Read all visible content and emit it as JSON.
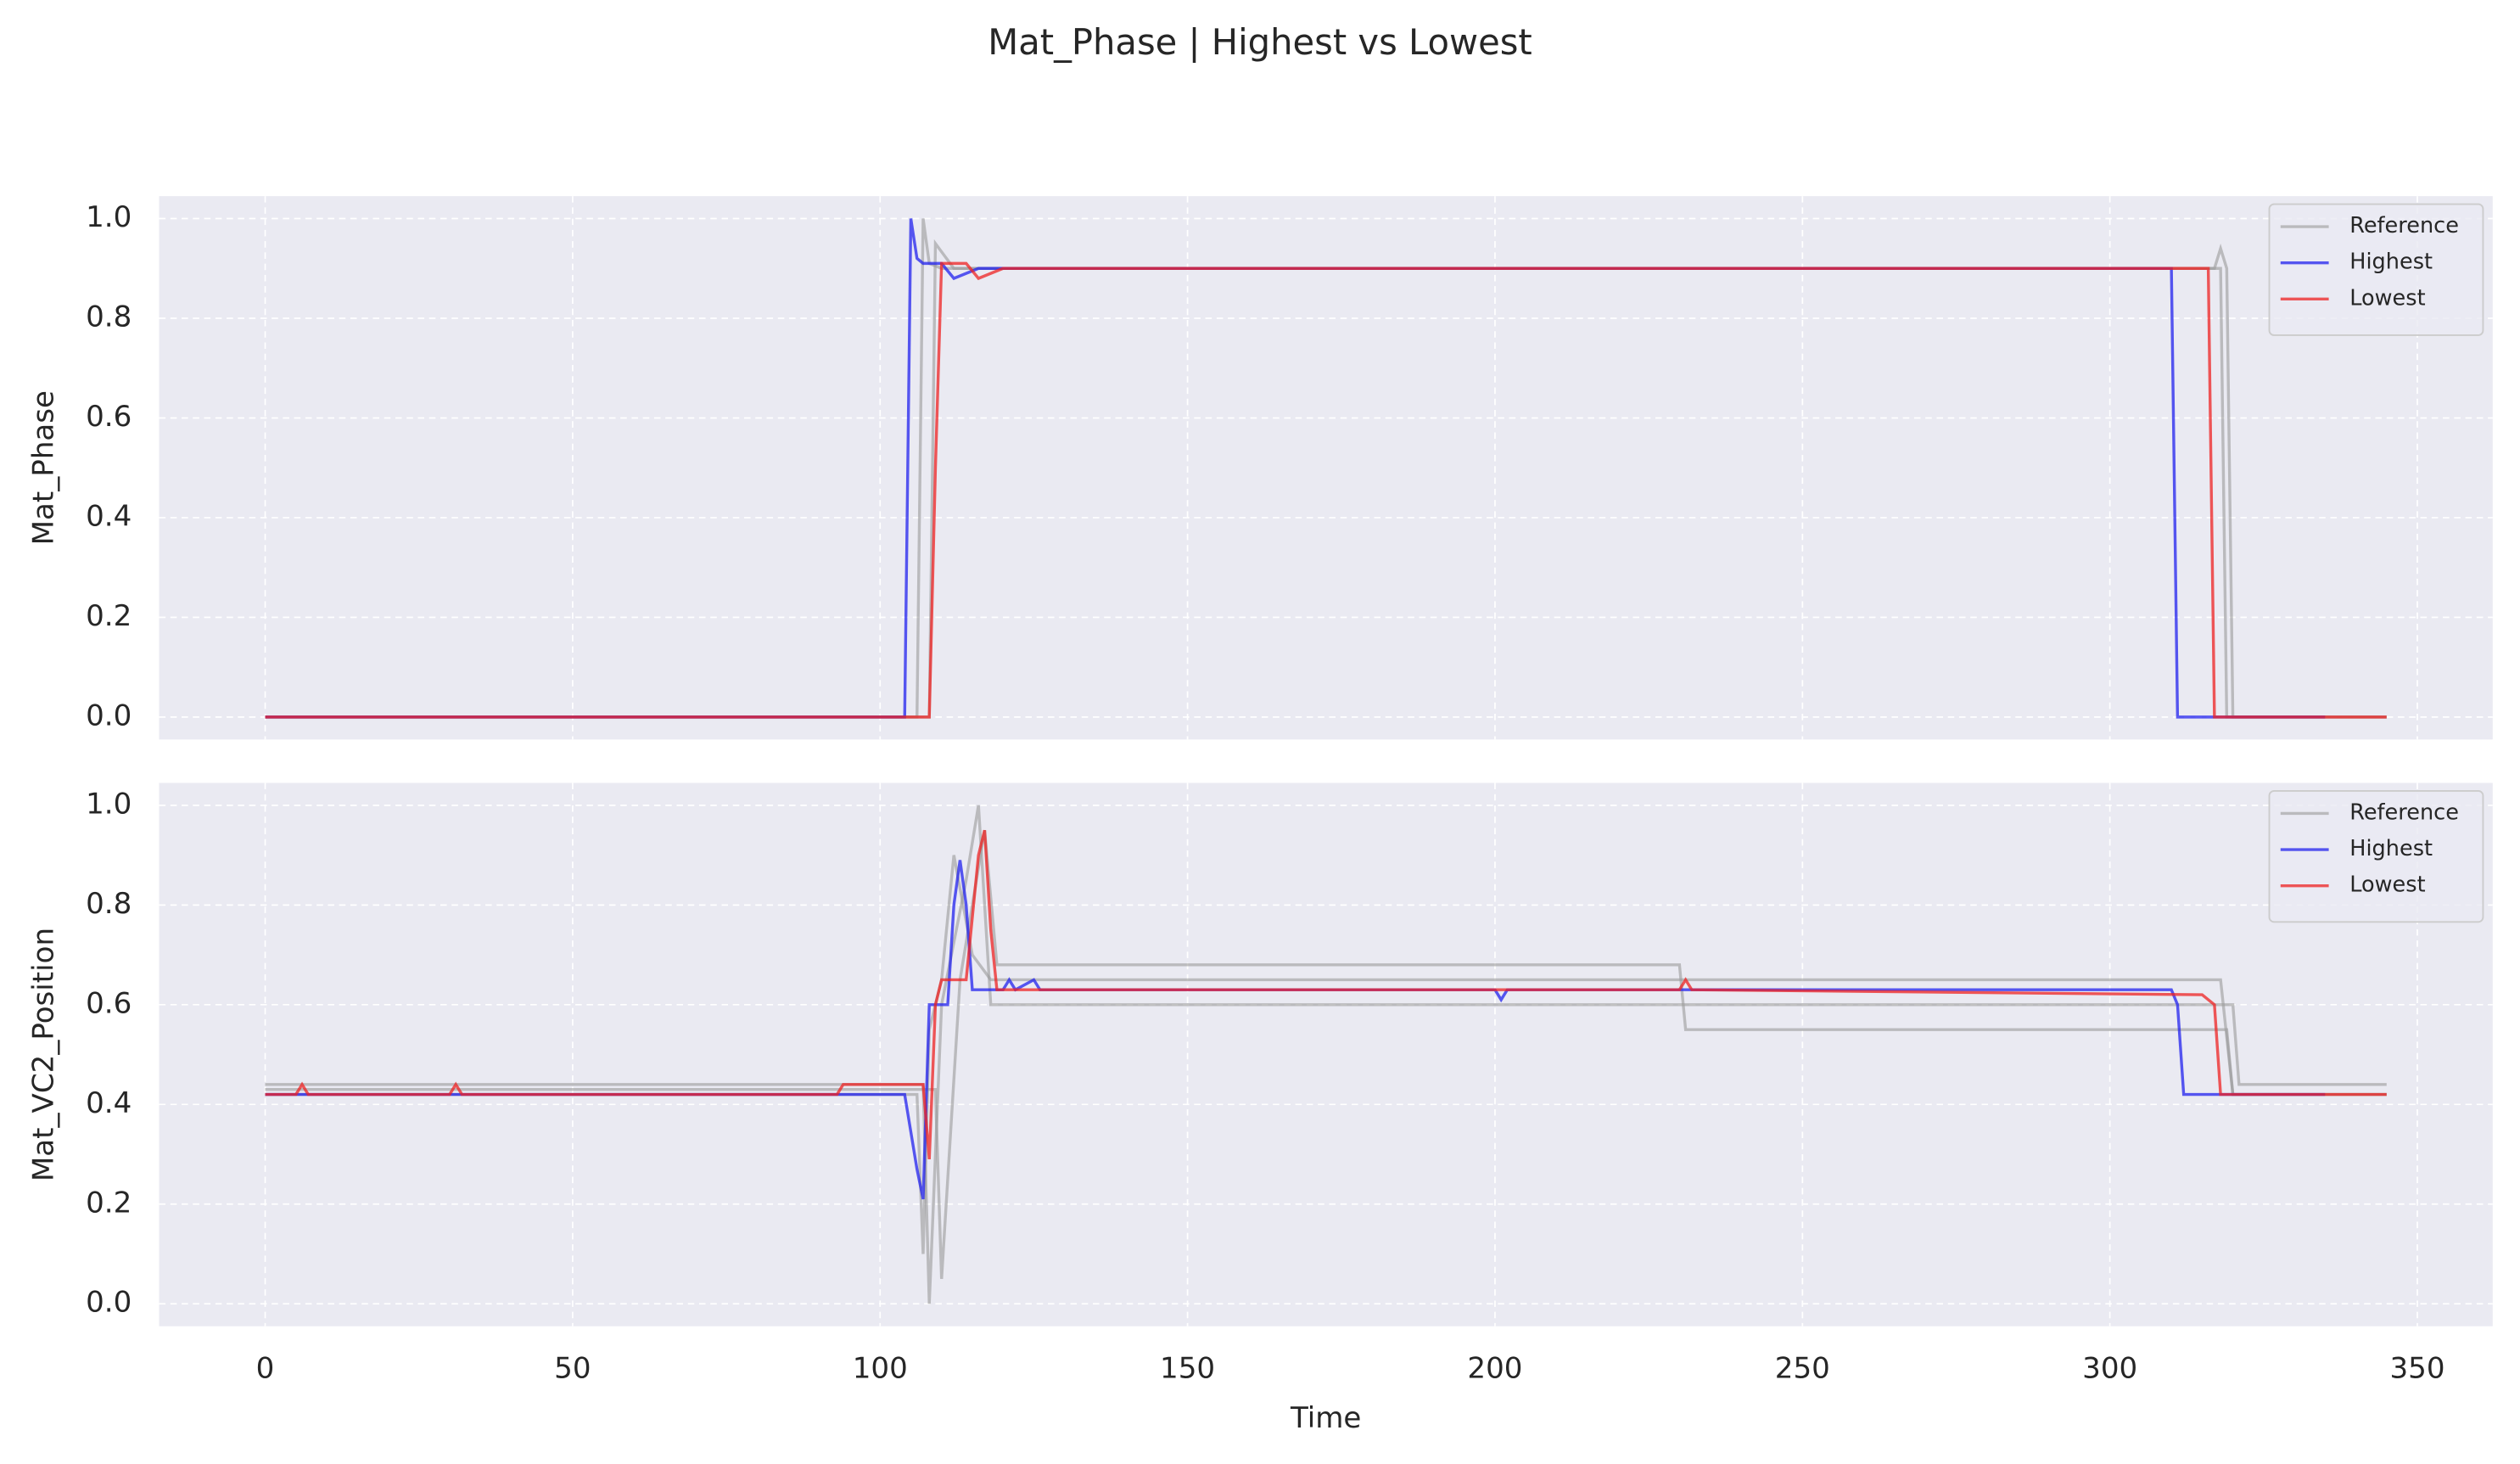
{
  "title": "Mat_Phase | Highest vs Lowest",
  "chart_data": [
    {
      "type": "line",
      "ylabel": "Mat_Phase",
      "legend": "upper right",
      "grid": true,
      "background": "#eaeaf2",
      "xlim": [
        -17.25,
        362.25
      ],
      "ylim": [
        -0.045,
        1.045
      ],
      "yticks": [
        {
          "value": 0,
          "label": "0.0"
        },
        0.2,
        0.4,
        0.6,
        0.8,
        {
          "value": 1,
          "label": "1.0"
        }
      ],
      "series": [
        {
          "name": "Reference",
          "color": "#999999",
          "x": [
            0,
            106,
            107,
            108,
            110,
            318,
            319,
            345
          ],
          "values": [
            0,
            0,
            1.0,
            0.91,
            0.9,
            0.9,
            0,
            0
          ]
        },
        {
          "name": "Reference",
          "color": "#999999",
          "x": [
            0,
            108,
            109,
            112,
            317,
            318,
            319,
            320,
            345
          ],
          "values": [
            0,
            0,
            0.95,
            0.9,
            0.9,
            0.94,
            0.9,
            0,
            0
          ]
        },
        {
          "name": "Highest",
          "color": "#2222ee",
          "x": [
            0,
            104,
            105,
            106,
            107,
            110,
            112,
            114,
            116,
            310,
            311,
            335
          ],
          "values": [
            0,
            0,
            1.0,
            0.92,
            0.91,
            0.91,
            0.88,
            0.89,
            0.9,
            0.9,
            0,
            0
          ]
        },
        {
          "name": "Lowest",
          "color": "#ee2222",
          "x": [
            0,
            108,
            109,
            110,
            114,
            116,
            118,
            120,
            316,
            317,
            345
          ],
          "values": [
            0,
            0,
            0.5,
            0.91,
            0.91,
            0.88,
            0.89,
            0.9,
            0.9,
            0,
            0
          ]
        }
      ]
    },
    {
      "type": "line",
      "ylabel": "Mat_VC2_Position",
      "xlabel": "Time",
      "legend": "upper right",
      "grid": true,
      "background": "#eaeaf2",
      "xlim": [
        -17.25,
        362.25
      ],
      "ylim": [
        -0.045,
        1.045
      ],
      "xticks": [
        0,
        50,
        100,
        150,
        200,
        250,
        300,
        350
      ],
      "yticks": [
        {
          "value": 0,
          "label": "0.0"
        },
        0.2,
        0.4,
        0.6,
        0.8,
        {
          "value": 1,
          "label": "1.0"
        }
      ],
      "series": [
        {
          "name": "Reference",
          "color": "#999999",
          "x": [
            0,
            106,
            107,
            108,
            110,
            112,
            115,
            118,
            318,
            320,
            345
          ],
          "values": [
            0.42,
            0.42,
            0.1,
            0.55,
            0.65,
            0.9,
            0.7,
            0.65,
            0.65,
            0.42,
            0.42
          ]
        },
        {
          "name": "Reference",
          "color": "#999999",
          "x": [
            0,
            107,
            108,
            110,
            114,
            116,
            118,
            320,
            321,
            345
          ],
          "values": [
            0.44,
            0.44,
            0.0,
            0.6,
            0.85,
            1.0,
            0.6,
            0.6,
            0.44,
            0.44
          ]
        },
        {
          "name": "Reference",
          "color": "#999999",
          "x": [
            0,
            109,
            110,
            113,
            117,
            119,
            230,
            231,
            300,
            319,
            320,
            345
          ],
          "values": [
            0.43,
            0.43,
            0.05,
            0.65,
            0.95,
            0.68,
            0.68,
            0.55,
            0.55,
            0.55,
            0.42,
            0.42
          ]
        },
        {
          "name": "Highest",
          "color": "#2222ee",
          "x": [
            0,
            104,
            106,
            107,
            108,
            111,
            112,
            113,
            114,
            115,
            120,
            121,
            122,
            125,
            126,
            200,
            201,
            202,
            310,
            311,
            312,
            335
          ],
          "values": [
            0.42,
            0.42,
            0.27,
            0.21,
            0.6,
            0.6,
            0.8,
            0.89,
            0.8,
            0.63,
            0.63,
            0.65,
            0.63,
            0.65,
            0.63,
            0.63,
            0.61,
            0.63,
            0.63,
            0.6,
            0.42,
            0.42
          ]
        },
        {
          "name": "Lowest",
          "color": "#ee2222",
          "x": [
            0,
            5,
            6,
            7,
            30,
            31,
            32,
            93,
            94,
            105,
            107,
            108,
            109,
            110,
            114,
            116,
            117,
            118,
            119,
            230,
            231,
            232,
            315,
            317,
            318,
            345
          ],
          "values": [
            0.42,
            0.42,
            0.44,
            0.42,
            0.42,
            0.44,
            0.42,
            0.42,
            0.44,
            0.44,
            0.44,
            0.29,
            0.6,
            0.65,
            0.65,
            0.9,
            0.95,
            0.75,
            0.63,
            0.63,
            0.65,
            0.63,
            0.62,
            0.6,
            0.42,
            0.42
          ]
        }
      ]
    }
  ]
}
